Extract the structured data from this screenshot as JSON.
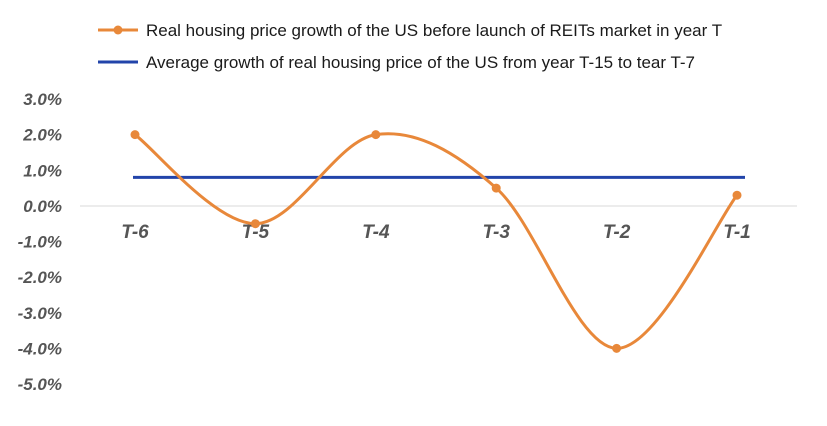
{
  "chart_data": {
    "type": "line",
    "categories": [
      "T-6",
      "T-5",
      "T-4",
      "T-3",
      "T-2",
      "T-1"
    ],
    "y_ticks": [
      "3.0%",
      "2.0%",
      "1.0%",
      "0.0%",
      "-1.0%",
      "-2.0%",
      "-3.0%",
      "-4.0%",
      "-5.0%"
    ],
    "ylim": [
      -5.0,
      3.0
    ],
    "grid": false,
    "legend_position": "top",
    "series": [
      {
        "name": "Real housing price growth of the US before launch of REITs market in year T",
        "values": [
          2.0,
          -0.5,
          2.0,
          0.5,
          -4.0,
          0.3
        ],
        "color": "#E8883A",
        "markers": true,
        "smooth": true
      },
      {
        "name": "Average growth of real housing price of the US from year T-15 to tear T-7",
        "values": [
          0.8,
          0.8,
          0.8,
          0.8,
          0.8,
          0.8
        ],
        "color": "#2244AA",
        "markers": false,
        "smooth": false
      }
    ]
  }
}
